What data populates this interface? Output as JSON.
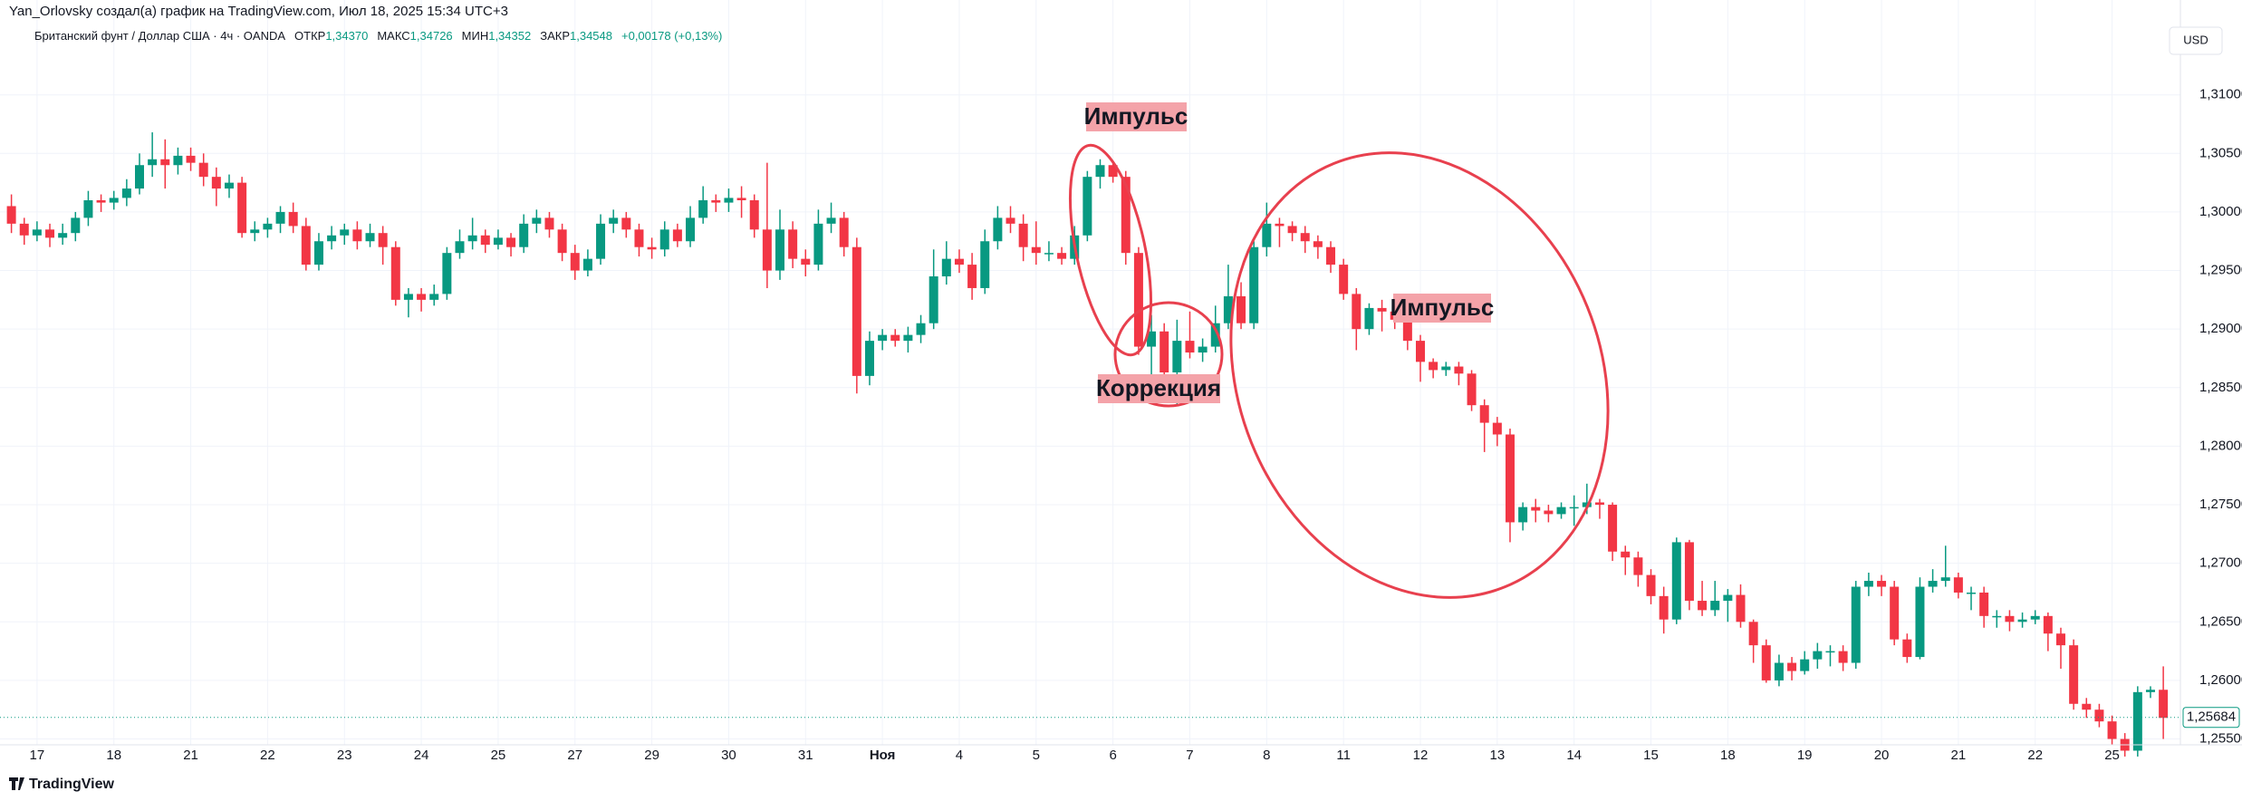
{
  "header": {
    "credit": "Yan_Orlovsky создал(а) график на TradingView.com, Июл 18, 2025 15:34 UTC+3",
    "symbol": "Британский фунт / Доллар США · 4ч · OANDA",
    "ohlc": [
      {
        "name": "ОТКР",
        "value": 1.3437,
        "label": "1,34370"
      },
      {
        "name": "МАКС",
        "value": 1.34726,
        "label": "1,34726"
      },
      {
        "name": "МИН",
        "value": 1.34352,
        "label": "1,34352"
      },
      {
        "name": "ЗАКР",
        "value": 1.34548,
        "label": "1,34548"
      }
    ],
    "change": "+0,00178 (+0,13%)",
    "currency": "USD"
  },
  "footer": {
    "brand": "TradingView"
  },
  "chart_data": {
    "type": "candlestick",
    "up_color": "#089981",
    "down_color": "#f23645",
    "grid": true,
    "ylim": [
      1.2545,
      1.3181
    ],
    "yticks": [
      {
        "value": 1.255,
        "label": "1,25500"
      },
      {
        "value": 1.26,
        "label": "1,26000"
      },
      {
        "value": 1.265,
        "label": "1,26500"
      },
      {
        "value": 1.27,
        "label": "1,27000"
      },
      {
        "value": 1.275,
        "label": "1,27500"
      },
      {
        "value": 1.28,
        "label": "1,28000"
      },
      {
        "value": 1.285,
        "label": "1,28500"
      },
      {
        "value": 1.29,
        "label": "1,29000"
      },
      {
        "value": 1.295,
        "label": "1,29500"
      },
      {
        "value": 1.3,
        "label": "1,30000"
      },
      {
        "value": 1.305,
        "label": "1,30500"
      },
      {
        "value": 1.31,
        "label": "1,31000"
      }
    ],
    "xticks": [
      {
        "value": 2,
        "label": "17"
      },
      {
        "value": 8,
        "label": "18"
      },
      {
        "value": 14,
        "label": "21"
      },
      {
        "value": 20,
        "label": "22"
      },
      {
        "value": 26,
        "label": "23"
      },
      {
        "value": 32,
        "label": "24"
      },
      {
        "value": 38,
        "label": "25"
      },
      {
        "value": 44,
        "label": "27"
      },
      {
        "value": 50,
        "label": "29"
      },
      {
        "value": 56,
        "label": "30"
      },
      {
        "value": 62,
        "label": "31"
      },
      {
        "value": 68,
        "label": "Ноя"
      },
      {
        "value": 74,
        "label": "4"
      },
      {
        "value": 80,
        "label": "5"
      },
      {
        "value": 86,
        "label": "6"
      },
      {
        "value": 92,
        "label": "7"
      },
      {
        "value": 98,
        "label": "8"
      },
      {
        "value": 104,
        "label": "11"
      },
      {
        "value": 110,
        "label": "12"
      },
      {
        "value": 116,
        "label": "13"
      },
      {
        "value": 122,
        "label": "14"
      },
      {
        "value": 128,
        "label": "15"
      },
      {
        "value": 134,
        "label": "18"
      },
      {
        "value": 140,
        "label": "19"
      },
      {
        "value": 146,
        "label": "20"
      },
      {
        "value": 152,
        "label": "21"
      },
      {
        "value": 158,
        "label": "22"
      },
      {
        "value": 164,
        "label": "25"
      }
    ],
    "last_price": {
      "value": 1.25684,
      "label": "1,25684"
    },
    "annotations": [
      "Импульс",
      "Коррекция",
      "Импульс"
    ],
    "candles": [
      [
        1.3005,
        1.3015,
        1.2982,
        1.299
      ],
      [
        1.299,
        1.2995,
        1.2972,
        1.298
      ],
      [
        1.298,
        1.2992,
        1.2975,
        1.2985
      ],
      [
        1.2985,
        1.299,
        1.297,
        1.2978
      ],
      [
        1.2978,
        1.299,
        1.2972,
        1.2982
      ],
      [
        1.2982,
        1.3,
        1.2975,
        1.2995
      ],
      [
        1.2995,
        1.3018,
        1.2988,
        1.301
      ],
      [
        1.301,
        1.3015,
        1.3,
        1.3008
      ],
      [
        1.3008,
        1.3018,
        1.3002,
        1.3012
      ],
      [
        1.3012,
        1.3028,
        1.3005,
        1.302
      ],
      [
        1.302,
        1.305,
        1.3015,
        1.304
      ],
      [
        1.304,
        1.3068,
        1.303,
        1.3045
      ],
      [
        1.3045,
        1.3062,
        1.302,
        1.304
      ],
      [
        1.304,
        1.3055,
        1.3032,
        1.3048
      ],
      [
        1.3048,
        1.3055,
        1.3035,
        1.3042
      ],
      [
        1.3042,
        1.305,
        1.3022,
        1.303
      ],
      [
        1.303,
        1.3038,
        1.3005,
        1.302
      ],
      [
        1.302,
        1.3032,
        1.3012,
        1.3025
      ],
      [
        1.3025,
        1.303,
        1.2978,
        1.2982
      ],
      [
        1.2982,
        1.2992,
        1.2975,
        1.2985
      ],
      [
        1.2985,
        1.2995,
        1.2978,
        1.299
      ],
      [
        1.299,
        1.3005,
        1.2982,
        1.3
      ],
      [
        1.3,
        1.3008,
        1.2982,
        1.2988
      ],
      [
        1.2988,
        1.2995,
        1.295,
        1.2955
      ],
      [
        1.2955,
        1.2982,
        1.295,
        1.2975
      ],
      [
        1.2975,
        1.2988,
        1.2968,
        1.298
      ],
      [
        1.298,
        1.299,
        1.2972,
        1.2985
      ],
      [
        1.2985,
        1.2992,
        1.2968,
        1.2975
      ],
      [
        1.2975,
        1.299,
        1.297,
        1.2982
      ],
      [
        1.2982,
        1.2988,
        1.2955,
        1.297
      ],
      [
        1.297,
        1.2975,
        1.292,
        1.2925
      ],
      [
        1.2925,
        1.2935,
        1.291,
        1.293
      ],
      [
        1.293,
        1.2935,
        1.2915,
        1.2925
      ],
      [
        1.2925,
        1.2938,
        1.292,
        1.293
      ],
      [
        1.293,
        1.297,
        1.2925,
        1.2965
      ],
      [
        1.2965,
        1.2985,
        1.296,
        1.2975
      ],
      [
        1.2975,
        1.2995,
        1.2968,
        1.298
      ],
      [
        1.298,
        1.2985,
        1.2965,
        1.2972
      ],
      [
        1.2972,
        1.2985,
        1.2968,
        1.2978
      ],
      [
        1.2978,
        1.2982,
        1.2962,
        1.297
      ],
      [
        1.297,
        1.2998,
        1.2965,
        1.299
      ],
      [
        1.299,
        1.3002,
        1.2982,
        1.2995
      ],
      [
        1.2995,
        1.3,
        1.2978,
        1.2985
      ],
      [
        1.2985,
        1.299,
        1.2958,
        1.2965
      ],
      [
        1.2965,
        1.2972,
        1.2942,
        1.295
      ],
      [
        1.295,
        1.2968,
        1.2945,
        1.296
      ],
      [
        1.296,
        1.2998,
        1.2955,
        1.299
      ],
      [
        1.299,
        1.3002,
        1.2982,
        1.2995
      ],
      [
        1.2995,
        1.3,
        1.2978,
        1.2985
      ],
      [
        1.2985,
        1.299,
        1.2962,
        1.297
      ],
      [
        1.297,
        1.2978,
        1.296,
        1.2968
      ],
      [
        1.2968,
        1.2992,
        1.2962,
        1.2985
      ],
      [
        1.2985,
        1.299,
        1.297,
        1.2975
      ],
      [
        1.2975,
        1.3005,
        1.297,
        1.2995
      ],
      [
        1.2995,
        1.3022,
        1.299,
        1.301
      ],
      [
        1.301,
        1.3015,
        1.3,
        1.3008
      ],
      [
        1.3008,
        1.302,
        1.3,
        1.3012
      ],
      [
        1.3012,
        1.3022,
        1.2995,
        1.301
      ],
      [
        1.301,
        1.3015,
        1.2978,
        1.2985
      ],
      [
        1.2985,
        1.3042,
        1.2935,
        1.295
      ],
      [
        1.295,
        1.3002,
        1.2942,
        1.2985
      ],
      [
        1.2985,
        1.2992,
        1.2952,
        1.296
      ],
      [
        1.296,
        1.2968,
        1.2945,
        1.2955
      ],
      [
        1.2955,
        1.3002,
        1.295,
        1.299
      ],
      [
        1.299,
        1.3008,
        1.2982,
        1.2995
      ],
      [
        1.2995,
        1.3,
        1.2962,
        1.297
      ],
      [
        1.297,
        1.2978,
        1.2845,
        1.286
      ],
      [
        1.286,
        1.2898,
        1.2852,
        1.289
      ],
      [
        1.289,
        1.29,
        1.2882,
        1.2895
      ],
      [
        1.2895,
        1.29,
        1.2885,
        1.289
      ],
      [
        1.289,
        1.2902,
        1.288,
        1.2895
      ],
      [
        1.2895,
        1.2912,
        1.2888,
        1.2905
      ],
      [
        1.2905,
        1.2968,
        1.29,
        1.2945
      ],
      [
        1.2945,
        1.2975,
        1.2938,
        1.296
      ],
      [
        1.296,
        1.2968,
        1.2948,
        1.2955
      ],
      [
        1.2955,
        1.2965,
        1.2925,
        1.2935
      ],
      [
        1.2935,
        1.2985,
        1.293,
        1.2975
      ],
      [
        1.2975,
        1.3005,
        1.2968,
        1.2995
      ],
      [
        1.2995,
        1.3005,
        1.2982,
        1.299
      ],
      [
        1.299,
        1.2998,
        1.2958,
        1.297
      ],
      [
        1.297,
        1.2992,
        1.2955,
        1.2965
      ],
      [
        1.2965,
        1.2975,
        1.2958,
        1.2965
      ],
      [
        1.2965,
        1.297,
        1.2955,
        1.296
      ],
      [
        1.296,
        1.2988,
        1.2955,
        1.298
      ],
      [
        1.298,
        1.3035,
        1.2975,
        1.303
      ],
      [
        1.303,
        1.3045,
        1.302,
        1.304
      ],
      [
        1.304,
        1.3042,
        1.3025,
        1.303
      ],
      [
        1.303,
        1.3035,
        1.2955,
        1.2965
      ],
      [
        1.2965,
        1.297,
        1.2878,
        1.2885
      ],
      [
        1.2885,
        1.2912,
        1.286,
        1.2898
      ],
      [
        1.2898,
        1.2905,
        1.2845,
        1.2863
      ],
      [
        1.2863,
        1.2908,
        1.2835,
        1.289
      ],
      [
        1.289,
        1.2915,
        1.2875,
        1.288
      ],
      [
        1.288,
        1.2892,
        1.2872,
        1.2885
      ],
      [
        1.2885,
        1.292,
        1.288,
        1.2905
      ],
      [
        1.2905,
        1.2955,
        1.29,
        1.2928
      ],
      [
        1.2928,
        1.294,
        1.29,
        1.2905
      ],
      [
        1.2905,
        1.2975,
        1.29,
        1.297
      ],
      [
        1.297,
        1.3008,
        1.2962,
        1.299
      ],
      [
        1.299,
        1.2995,
        1.297,
        1.2988
      ],
      [
        1.2988,
        1.2992,
        1.2975,
        1.2982
      ],
      [
        1.2982,
        1.2988,
        1.2965,
        1.2975
      ],
      [
        1.2975,
        1.298,
        1.296,
        1.297
      ],
      [
        1.297,
        1.2975,
        1.2948,
        1.2955
      ],
      [
        1.2955,
        1.296,
        1.2925,
        1.293
      ],
      [
        1.293,
        1.2935,
        1.2882,
        1.29
      ],
      [
        1.29,
        1.2922,
        1.2895,
        1.2918
      ],
      [
        1.2918,
        1.2925,
        1.2898,
        1.2915
      ],
      [
        1.2915,
        1.292,
        1.29,
        1.2908
      ],
      [
        1.2908,
        1.2915,
        1.2882,
        1.289
      ],
      [
        1.289,
        1.2895,
        1.2855,
        1.2872
      ],
      [
        1.2872,
        1.2875,
        1.2858,
        1.2865
      ],
      [
        1.2865,
        1.2872,
        1.286,
        1.2868
      ],
      [
        1.2868,
        1.2872,
        1.2852,
        1.2862
      ],
      [
        1.2862,
        1.2865,
        1.283,
        1.2835
      ],
      [
        1.2835,
        1.284,
        1.2795,
        1.282
      ],
      [
        1.282,
        1.2825,
        1.28,
        1.281
      ],
      [
        1.281,
        1.2815,
        1.2718,
        1.2735
      ],
      [
        1.2735,
        1.2752,
        1.2728,
        1.2748
      ],
      [
        1.2748,
        1.2755,
        1.2735,
        1.2745
      ],
      [
        1.2745,
        1.275,
        1.2735,
        1.2742
      ],
      [
        1.2742,
        1.2752,
        1.2738,
        1.2748
      ],
      [
        1.2748,
        1.2758,
        1.2732,
        1.2748
      ],
      [
        1.2748,
        1.2768,
        1.2742,
        1.2752
      ],
      [
        1.2752,
        1.2755,
        1.2738,
        1.275
      ],
      [
        1.275,
        1.2752,
        1.2702,
        1.271
      ],
      [
        1.271,
        1.2715,
        1.269,
        1.2705
      ],
      [
        1.2705,
        1.271,
        1.268,
        1.269
      ],
      [
        1.269,
        1.2695,
        1.2665,
        1.2672
      ],
      [
        1.2672,
        1.268,
        1.264,
        1.2652
      ],
      [
        1.2652,
        1.2722,
        1.2648,
        1.2718
      ],
      [
        1.2718,
        1.272,
        1.266,
        1.2668
      ],
      [
        1.2668,
        1.2685,
        1.2655,
        1.266
      ],
      [
        1.266,
        1.2685,
        1.2655,
        1.2668
      ],
      [
        1.2668,
        1.2678,
        1.265,
        1.2673
      ],
      [
        1.2673,
        1.2682,
        1.2645,
        1.265
      ],
      [
        1.265,
        1.2652,
        1.2615,
        1.263
      ],
      [
        1.263,
        1.2635,
        1.2598,
        1.26
      ],
      [
        1.26,
        1.2622,
        1.2595,
        1.2615
      ],
      [
        1.2615,
        1.262,
        1.26,
        1.2608
      ],
      [
        1.2608,
        1.2625,
        1.2605,
        1.2618
      ],
      [
        1.2618,
        1.2632,
        1.261,
        1.2625
      ],
      [
        1.2625,
        1.263,
        1.2612,
        1.2625
      ],
      [
        1.2625,
        1.263,
        1.2608,
        1.2615
      ],
      [
        1.2615,
        1.2685,
        1.261,
        1.268
      ],
      [
        1.268,
        1.2692,
        1.2672,
        1.2685
      ],
      [
        1.2685,
        1.269,
        1.2672,
        1.268
      ],
      [
        1.268,
        1.2685,
        1.263,
        1.2635
      ],
      [
        1.2635,
        1.264,
        1.2615,
        1.262
      ],
      [
        1.262,
        1.2688,
        1.2618,
        1.268
      ],
      [
        1.268,
        1.2695,
        1.2675,
        1.2685
      ],
      [
        1.2685,
        1.2715,
        1.268,
        1.2688
      ],
      [
        1.2688,
        1.2692,
        1.267,
        1.2675
      ],
      [
        1.2675,
        1.268,
        1.266,
        1.2675
      ],
      [
        1.2675,
        1.268,
        1.2645,
        1.2655
      ],
      [
        1.2655,
        1.266,
        1.2645,
        1.2655
      ],
      [
        1.2655,
        1.266,
        1.2642,
        1.265
      ],
      [
        1.265,
        1.2658,
        1.2645,
        1.2652
      ],
      [
        1.2652,
        1.266,
        1.2648,
        1.2655
      ],
      [
        1.2655,
        1.2658,
        1.2625,
        1.264
      ],
      [
        1.264,
        1.2645,
        1.261,
        1.263
      ],
      [
        1.263,
        1.2635,
        1.2575,
        1.258
      ],
      [
        1.258,
        1.2585,
        1.2568,
        1.2575
      ],
      [
        1.2575,
        1.258,
        1.256,
        1.2565
      ],
      [
        1.2565,
        1.257,
        1.2545,
        1.255
      ],
      [
        1.255,
        1.2555,
        1.2535,
        1.254
      ],
      [
        1.254,
        1.2595,
        1.2535,
        1.259
      ],
      [
        1.259,
        1.2595,
        1.2585,
        1.2592
      ],
      [
        1.2592,
        1.2612,
        1.255,
        1.2568
      ]
    ]
  }
}
